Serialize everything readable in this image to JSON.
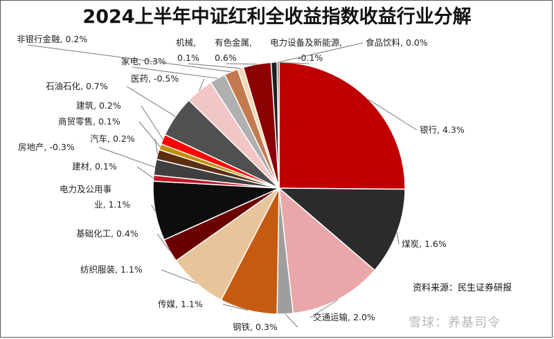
{
  "chart_data": {
    "type": "pie",
    "title": "2024上半年中证红利全收益指数收益行业分解",
    "slices": [
      {
        "name": "银行",
        "label": "银行, 4.3%",
        "size": 99,
        "color": "#c00000"
      },
      {
        "name": "煤炭",
        "label": "煤炭, 1.6%",
        "size": 44,
        "color": "#2b2b2b"
      },
      {
        "name": "交通运输",
        "label": "交通运输, 2.0%",
        "size": 47,
        "color": "#e9a7a9"
      },
      {
        "name": "钢铁",
        "label": "钢铁, 0.3%",
        "size": 8,
        "color": "#9e9e9e"
      },
      {
        "name": "传媒",
        "label": "传媒, 1.1%",
        "size": 29,
        "color": "#c55a11"
      },
      {
        "name": "纺织服装",
        "label": "纺织服装, 1.1%",
        "size": 30,
        "color": "#e8c49a"
      },
      {
        "name": "基础化工",
        "label": "基础化工, 0.4%",
        "size": 12,
        "color": "#6b0000"
      },
      {
        "name": "电力及公用事业",
        "label": "电力及公用事\n业, 1.1%",
        "size": 30,
        "color": "#0d0d0d"
      },
      {
        "name": "建材",
        "label": "建材, 0.1%",
        "size": 3,
        "color": "#c0182a"
      },
      {
        "name": "房地产",
        "label": "房地产, -0.3%",
        "size": 8,
        "color": "#3f3f3f"
      },
      {
        "name": "汽车",
        "label": "汽车, 0.2%",
        "size": 5,
        "color": "#5c2f13"
      },
      {
        "name": "商贸零售",
        "label": "商贸零售, 0.1%",
        "size": 3,
        "color": "#bf8f00"
      },
      {
        "name": "建筑",
        "label": "建筑, 0.2%",
        "size": 5,
        "color": "#ff0000"
      },
      {
        "name": "石油石化",
        "label": "石油石化, 0.7%",
        "size": 21,
        "color": "#505050"
      },
      {
        "name": "医药",
        "label": "医药, -0.5%",
        "size": 14,
        "color": "#f2c6c4"
      },
      {
        "name": "家电",
        "label": "家电, 0.3%",
        "size": 8,
        "color": "#b0b0b0"
      },
      {
        "name": "非银行金融",
        "label": "非银行金融, 0.2%",
        "size": 7,
        "color": "#c47a4f"
      },
      {
        "name": "机械",
        "label": "机械,\n0.1%",
        "size": 3,
        "color": "#f3d7b4"
      },
      {
        "name": "有色金属",
        "label": "有色金属,\n0.6%",
        "size": 14,
        "color": "#8b0000"
      },
      {
        "name": "电力设备及新能源",
        "label": "电力设备及新能源,\n-0.1%",
        "size": 3,
        "color": "#1f1f1f"
      },
      {
        "name": "食品饮料",
        "label": "食品饮料, 0.0%",
        "size": 1,
        "color": "#5a5a5a"
      }
    ]
  },
  "source": "资料来源：民生证券研报",
  "watermark": "雪球：养基司令"
}
